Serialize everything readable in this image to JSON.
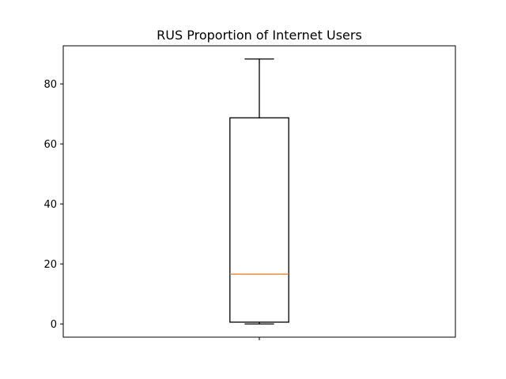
{
  "chart_data": {
    "type": "boxplot",
    "title": "RUS Proportion of Internet Users",
    "xlabel": "",
    "ylabel": "",
    "ylim": [
      -4.4,
      92.7
    ],
    "yticks": [
      0,
      20,
      40,
      60,
      80
    ],
    "xticks": [
      1
    ],
    "xtick_labels": [
      ""
    ],
    "grid": false,
    "legend": "none",
    "boxes": [
      {
        "position": 1,
        "whisker_low": 0,
        "q1": 0.6,
        "median": 16.6,
        "q3": 68.7,
        "whisker_high": 88.3
      }
    ],
    "colors": {
      "box": "#000000",
      "median": "#ff7f0e",
      "axes": "#000000"
    }
  }
}
